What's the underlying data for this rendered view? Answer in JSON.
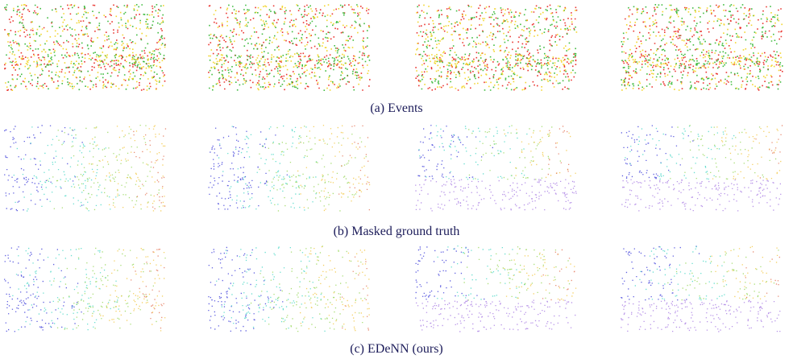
{
  "figure": {
    "captions": [
      "(a)  Events",
      "(b)  Masked ground truth",
      "(c)  EDeNN (ours)"
    ]
  }
}
